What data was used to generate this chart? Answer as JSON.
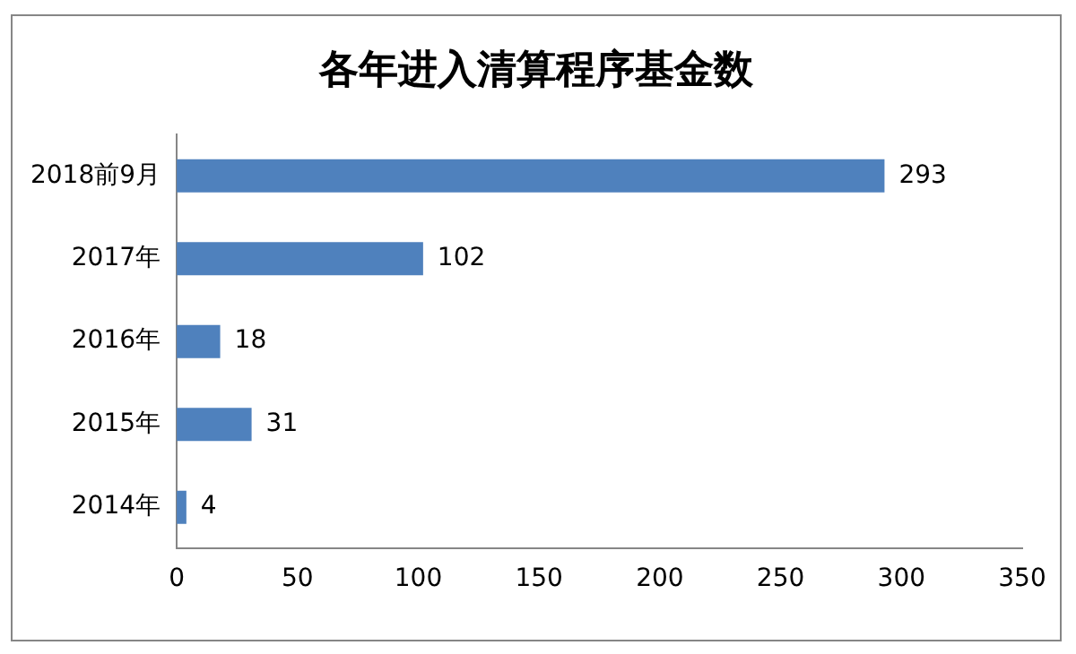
{
  "chart_data": {
    "type": "bar",
    "orientation": "horizontal",
    "title": "各年进入清算程序基金数",
    "categories": [
      "2018前9月",
      "2017年",
      "2016年",
      "2015年",
      "2014年"
    ],
    "values": [
      293,
      102,
      18,
      31,
      4
    ],
    "color": "#4f81bd",
    "xlim": [
      0,
      350
    ],
    "xticks": [
      0,
      50,
      100,
      150,
      200,
      250,
      300,
      350
    ],
    "grid": false,
    "legend": false,
    "data_labels": true
  }
}
